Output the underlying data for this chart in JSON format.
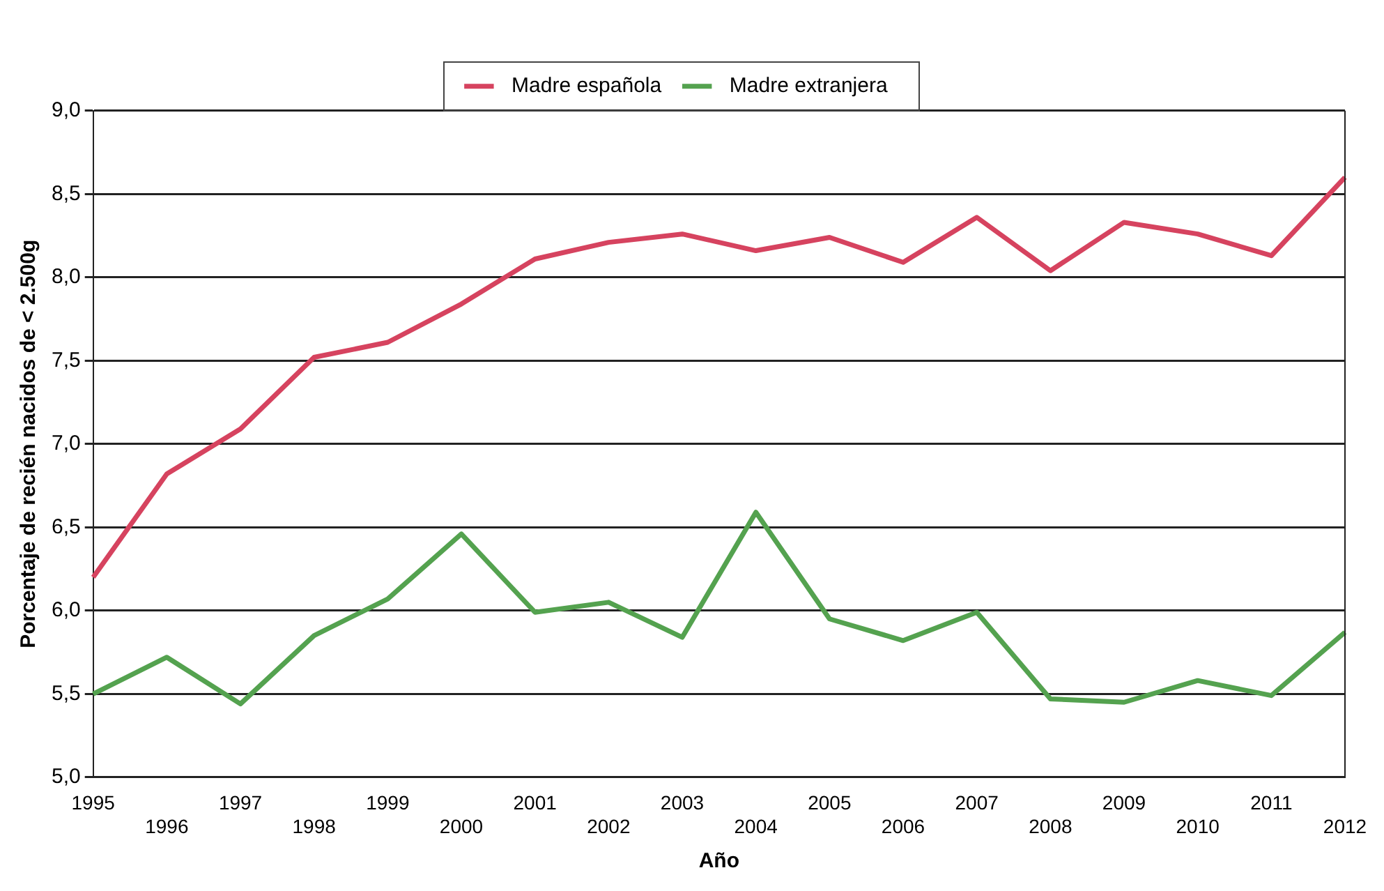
{
  "chart_data": {
    "type": "line",
    "xlabel": "Año",
    "ylabel": "Porcentaje de recién nacidos de < 2.500g",
    "categories": [
      "1995",
      "1996",
      "1997",
      "1998",
      "1999",
      "2000",
      "2001",
      "2002",
      "2003",
      "2004",
      "2005",
      "2006",
      "2007",
      "2008",
      "2009",
      "2010",
      "2011",
      "2012"
    ],
    "series": [
      {
        "name": "Madre española",
        "color": "#d6435f",
        "values": [
          6.2,
          6.82,
          7.09,
          7.52,
          7.61,
          7.84,
          8.11,
          8.21,
          8.26,
          8.16,
          8.24,
          8.09,
          8.36,
          8.04,
          8.33,
          8.26,
          8.13,
          8.6
        ]
      },
      {
        "name": "Madre extranjera",
        "color": "#54a24f",
        "values": [
          5.5,
          5.72,
          5.44,
          5.85,
          6.07,
          6.46,
          5.99,
          6.05,
          5.84,
          6.59,
          5.95,
          5.82,
          5.99,
          5.47,
          5.45,
          5.58,
          5.49,
          5.87
        ]
      }
    ],
    "ylim": [
      5,
      9
    ],
    "yticks": [
      {
        "value": 5,
        "label": "5,0"
      },
      {
        "value": 5.5,
        "label": "5,5"
      },
      {
        "value": 6,
        "label": "6,0"
      },
      {
        "value": 6.5,
        "label": "6,5"
      },
      {
        "value": 7,
        "label": "7,0"
      },
      {
        "value": 7.5,
        "label": "7,5"
      },
      {
        "value": 8,
        "label": "8,0"
      },
      {
        "value": 8.5,
        "label": "8,5"
      },
      {
        "value": 9,
        "label": "9,0"
      }
    ],
    "grid": "y",
    "legend": "top",
    "marker": "none",
    "line_style": "solid"
  }
}
